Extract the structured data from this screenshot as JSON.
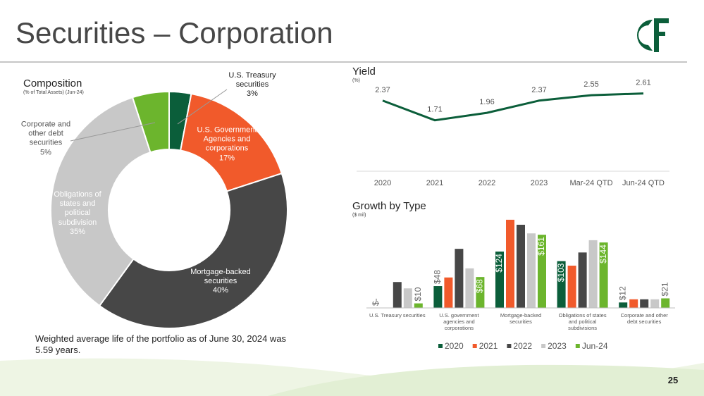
{
  "title": "Securities – Corporation",
  "note": "Weighted average life of the portfolio as of June 30, 2024 was 5.59 years.",
  "page_number": 25,
  "chart_data": [
    {
      "type": "donut",
      "title": "Composition",
      "subtitle": "(% of Total Assets) (Jun-24)",
      "categories": [
        "U.S. Treasury securities",
        "U.S. Government Agencies and corporations",
        "Mortgage-backed securities",
        "Obligations of states and political subdivision",
        "Corporate and other debt securities"
      ],
      "values": [
        3,
        17,
        40,
        35,
        5
      ],
      "value_labels": [
        "3%",
        "17%",
        "40%",
        "35%",
        "5%"
      ],
      "colors": [
        "#0b5e3a",
        "#f15a2b",
        "#474747",
        "#c8c8c8",
        "#6cb52d"
      ]
    },
    {
      "type": "line",
      "title": "Yield",
      "subtitle": "(%)",
      "categories": [
        "2020",
        "2021",
        "2022",
        "2023",
        "Mar-24 QTD",
        "Jun-24 QTD"
      ],
      "values": [
        2.37,
        1.71,
        1.96,
        2.37,
        2.55,
        2.61
      ],
      "value_labels": [
        "2.37",
        "1.71",
        "1.96",
        "2.37",
        "2.55",
        "2.61"
      ],
      "color": "#0b5e3a",
      "ylim": [
        0,
        3.5
      ]
    },
    {
      "type": "bar",
      "title": "Growth by Type",
      "subtitle": "($ mil)",
      "categories": [
        "U.S. Treasury securities",
        "U.S. government agencies and corporations",
        "Mortgage-backed securities",
        "Obligations of states and political subdivisions",
        "Corporate and other debt securities"
      ],
      "series": [
        {
          "name": "2020",
          "color": "#0b5e3a",
          "values": [
            0,
            48,
            124,
            103,
            12
          ],
          "value_labels": [
            "$-",
            "$48",
            "$124",
            "$103",
            "$12"
          ]
        },
        {
          "name": "2021",
          "color": "#f15a2b",
          "values": [
            0,
            67,
            194,
            93,
            19
          ]
        },
        {
          "name": "2022",
          "color": "#474747",
          "values": [
            57,
            130,
            183,
            122,
            19
          ]
        },
        {
          "name": "2023",
          "color": "#c8c8c8",
          "values": [
            43,
            87,
            164,
            149,
            19
          ]
        },
        {
          "name": "Jun-24",
          "color": "#6cb52d",
          "values": [
            10,
            68,
            161,
            144,
            21
          ],
          "value_labels": [
            "$10",
            "$68",
            "$161",
            "$144",
            "$21"
          ]
        }
      ],
      "ylim": [
        0,
        200
      ],
      "legend": "bottom"
    }
  ]
}
